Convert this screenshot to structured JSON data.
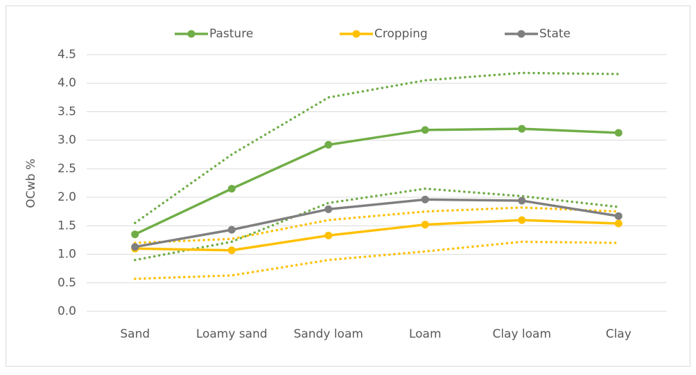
{
  "chart_data": {
    "type": "line",
    "y_label": "OCwb %",
    "categories": [
      "Sand",
      "Loamy sand",
      "Sandy loam",
      "Loam",
      "Clay loam",
      "Clay"
    ],
    "series": [
      {
        "name": "Pasture",
        "color": "#70ad47",
        "values": [
          1.35,
          2.15,
          2.92,
          3.18,
          3.2,
          3.13
        ]
      },
      {
        "name": "Cropping",
        "color": "#ffc000",
        "values": [
          1.1,
          1.07,
          1.33,
          1.52,
          1.6,
          1.54
        ]
      },
      {
        "name": "State",
        "color": "#7f7f7f",
        "values": [
          1.13,
          1.43,
          1.79,
          1.96,
          1.94,
          1.67
        ]
      },
      {
        "color": "#70ad47",
        "dotted": true,
        "values": [
          1.55,
          2.75,
          3.75,
          4.05,
          4.18,
          4.16
        ]
      },
      {
        "color": "#70ad47",
        "dotted": true,
        "values": [
          0.9,
          1.22,
          1.9,
          2.15,
          2.02,
          1.83
        ]
      },
      {
        "color": "#ffc000",
        "dotted": true,
        "values": [
          1.2,
          1.27,
          1.6,
          1.75,
          1.82,
          1.75
        ]
      },
      {
        "color": "#ffc000",
        "dotted": true,
        "values": [
          0.57,
          0.63,
          0.9,
          1.05,
          1.22,
          1.2
        ]
      }
    ],
    "ylim": [
      0,
      4.5
    ],
    "yticks": [
      {
        "value": 0,
        "label": "0.0"
      },
      0.5,
      {
        "value": 1,
        "label": "1.0"
      },
      1.5,
      {
        "value": 2,
        "label": "2.0"
      },
      2.5,
      {
        "value": 3,
        "label": "3.0"
      },
      3.5,
      {
        "value": 4,
        "label": "4.0"
      },
      4.5
    ],
    "grid": true,
    "legend": "top"
  }
}
